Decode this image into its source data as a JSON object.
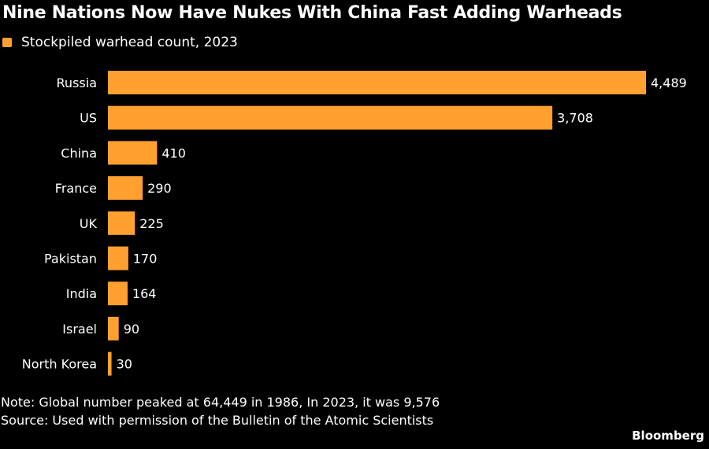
{
  "chart_data": {
    "type": "bar",
    "orientation": "horizontal",
    "title": "Nine Nations Now Have Nukes With China Fast Adding Warheads",
    "legend": [
      {
        "label": "Stockpiled warhead count, 2023",
        "color": "#FFA02F"
      }
    ],
    "legend_position": "top-left",
    "categories": [
      "Russia",
      "US",
      "China",
      "France",
      "UK",
      "Pakistan",
      "India",
      "Israel",
      "North Korea"
    ],
    "values": [
      4489,
      3708,
      410,
      290,
      225,
      170,
      164,
      90,
      30
    ],
    "value_labels": [
      "4,489",
      "3,708",
      "410",
      "290",
      "225",
      "170",
      "164",
      "90",
      "30"
    ],
    "xlabel": "",
    "ylabel": "",
    "xlim": [
      0,
      4489
    ],
    "grid": false,
    "bar_color": "#FFA02F"
  },
  "footer": {
    "note": "Note: Global number peaked at 64,449 in 1986, In 2023, it was 9,576",
    "source": "Source: Used with permission of the Bulletin of the Atomic Scientists",
    "brand": "Bloomberg"
  }
}
